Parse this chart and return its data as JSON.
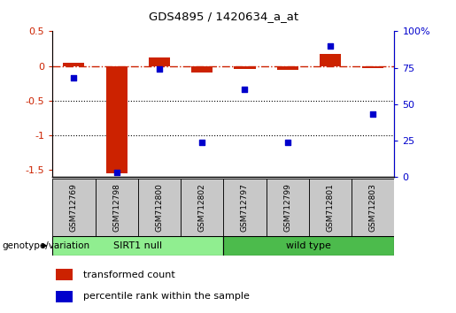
{
  "title": "GDS4895 / 1420634_a_at",
  "samples": [
    "GSM712769",
    "GSM712798",
    "GSM712800",
    "GSM712802",
    "GSM712797",
    "GSM712799",
    "GSM712801",
    "GSM712803"
  ],
  "groups": [
    {
      "name": "SIRT1 null",
      "indices": [
        0,
        1,
        2,
        3
      ],
      "color": "#90EE90"
    },
    {
      "name": "wild type",
      "indices": [
        4,
        5,
        6,
        7
      ],
      "color": "#4CBB4C"
    }
  ],
  "red_values": [
    0.04,
    -1.55,
    0.12,
    -0.1,
    -0.04,
    -0.05,
    0.17,
    -0.03
  ],
  "blue_values": [
    68,
    3,
    74,
    24,
    60,
    24,
    90,
    43
  ],
  "red_color": "#CC2200",
  "blue_color": "#0000CC",
  "ylim_left": [
    -1.6,
    0.5
  ],
  "ylim_right": [
    0,
    100
  ],
  "left_ticks": [
    0.5,
    0,
    -0.5,
    -1.0,
    -1.5
  ],
  "right_ticks": [
    100,
    75,
    50,
    25,
    0
  ],
  "dotted_lines": [
    -0.5,
    -1.0
  ],
  "group_label": "genotype/variation",
  "legend_red": "transformed count",
  "legend_blue": "percentile rank within the sample",
  "sample_box_color": "#C8C8C8",
  "fig_width": 5.15,
  "fig_height": 3.54,
  "dpi": 100
}
